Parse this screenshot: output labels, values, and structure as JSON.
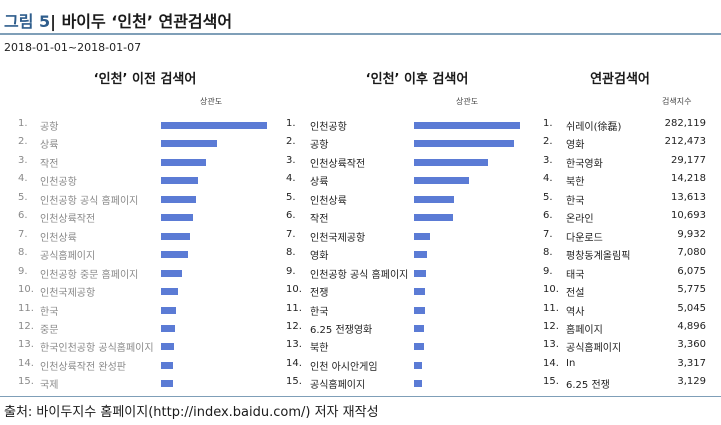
{
  "figure": {
    "number": "그림 5",
    "title": "바이두 ‘인천’ 연관검색어",
    "date_range": "2018-01-01~2018-01-07",
    "source": "출처: 바이두지수 홈페이지(http://index.baidu.com/) 저자 재작성"
  },
  "before": {
    "title": "‘인천’ 이전 검색어",
    "header": "상관도",
    "items": [
      {
        "rank": "1.",
        "term": "공항",
        "value": 100
      },
      {
        "rank": "2.",
        "term": "상륙",
        "value": 53
      },
      {
        "rank": "3.",
        "term": "작전",
        "value": 42
      },
      {
        "rank": "4.",
        "term": "인천공항",
        "value": 35
      },
      {
        "rank": "5.",
        "term": "인천공항 공식 홈페이지",
        "value": 33
      },
      {
        "rank": "6.",
        "term": "인천상륙작전",
        "value": 30
      },
      {
        "rank": "7.",
        "term": "인천상륙",
        "value": 27
      },
      {
        "rank": "8.",
        "term": "공식홈페이지",
        "value": 25
      },
      {
        "rank": "9.",
        "term": "인천공항 중문 홈페이지",
        "value": 20
      },
      {
        "rank": "10.",
        "term": "인천국제공항",
        "value": 16
      },
      {
        "rank": "11.",
        "term": "한국",
        "value": 14
      },
      {
        "rank": "12.",
        "term": "중문",
        "value": 13
      },
      {
        "rank": "13.",
        "term": "한국인천공항 공식홈페이지",
        "value": 12
      },
      {
        "rank": "14.",
        "term": "인천상륙작전 완성판",
        "value": 11
      },
      {
        "rank": "15.",
        "term": "국제",
        "value": 11
      }
    ]
  },
  "after": {
    "title": "‘인천’ 이후 검색어",
    "header": "상관도",
    "items": [
      {
        "rank": "1.",
        "term": "인천공항",
        "value": 100
      },
      {
        "rank": "2.",
        "term": "공항",
        "value": 94
      },
      {
        "rank": "3.",
        "term": "인천상륙작전",
        "value": 70
      },
      {
        "rank": "4.",
        "term": "상륙",
        "value": 52
      },
      {
        "rank": "5.",
        "term": "인천상륙",
        "value": 38
      },
      {
        "rank": "6.",
        "term": "작전",
        "value": 37
      },
      {
        "rank": "7.",
        "term": "인천국제공항",
        "value": 15
      },
      {
        "rank": "8.",
        "term": "영화",
        "value": 12
      },
      {
        "rank": "9.",
        "term": "인천공항 공식 홈페이지",
        "value": 11
      },
      {
        "rank": "10.",
        "term": "전쟁",
        "value": 10
      },
      {
        "rank": "11.",
        "term": "한국",
        "value": 10
      },
      {
        "rank": "12.",
        "term": "6.25 전쟁영화",
        "value": 9
      },
      {
        "rank": "13.",
        "term": "북한",
        "value": 9
      },
      {
        "rank": "14.",
        "term": "인천 아시안게임",
        "value": 8
      },
      {
        "rank": "15.",
        "term": "공식홈페이지",
        "value": 8
      }
    ]
  },
  "related": {
    "title": "연관검색어",
    "header": "검색지수",
    "items": [
      {
        "rank": "1.",
        "term": "쉬레이(徐磊)",
        "count": "282,119"
      },
      {
        "rank": "2.",
        "term": "영화",
        "count": "212,473"
      },
      {
        "rank": "3.",
        "term": "한국영화",
        "count": "29,177"
      },
      {
        "rank": "4.",
        "term": "북한",
        "count": "14,218"
      },
      {
        "rank": "5.",
        "term": "한국",
        "count": "13,613"
      },
      {
        "rank": "6.",
        "term": "온라인",
        "count": "10,693"
      },
      {
        "rank": "7.",
        "term": "다운로드",
        "count": "9,932"
      },
      {
        "rank": "8.",
        "term": "평창동계올림픽",
        "count": "7,080"
      },
      {
        "rank": "9.",
        "term": "태국",
        "count": "6,075"
      },
      {
        "rank": "10.",
        "term": "전설",
        "count": "5,775"
      },
      {
        "rank": "11.",
        "term": "역사",
        "count": "5,045"
      },
      {
        "rank": "12.",
        "term": "홈페이지",
        "count": "4,896"
      },
      {
        "rank": "13.",
        "term": "공식홈페이지",
        "count": "3,360"
      },
      {
        "rank": "14.",
        "term": "In",
        "count": "3,317"
      },
      {
        "rank": "15.",
        "term": "6.25 전쟁",
        "count": "3,129"
      }
    ]
  }
}
